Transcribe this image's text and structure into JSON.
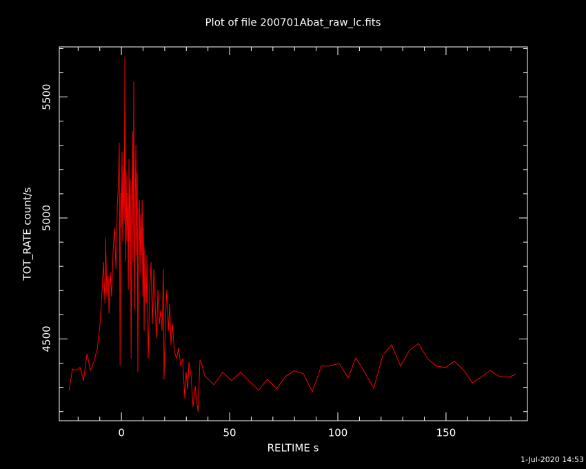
{
  "chart_data": {
    "type": "line",
    "title": "Plot of file 200701Abat_raw_lc.fits",
    "x_label": "RELTIME  s",
    "y_label": "TOT_RATE  count/s",
    "timestamp": "1-Jul-2020 14:53",
    "xlim": [
      -28.7,
      187.6
    ],
    "ylim": [
      4162,
      5707
    ],
    "xticks": [
      0,
      50,
      100,
      150
    ],
    "yticks": [
      4500,
      5000,
      5500
    ],
    "xminorticks": [
      -20,
      -10,
      10,
      20,
      30,
      40,
      60,
      70,
      80,
      90,
      110,
      120,
      130,
      140,
      160,
      170,
      180
    ],
    "yminorticks": [
      4200,
      4300,
      4400,
      4600,
      4700,
      4800,
      4900,
      5100,
      5200,
      5300,
      5400,
      5600,
      5700
    ],
    "x": [
      -24.2,
      -22.6,
      -21,
      -19.1,
      -17.5,
      -15.9,
      -14.3,
      -12.7,
      -11.1,
      -9.9,
      -8.9,
      -8.3,
      -7.6,
      -7.3,
      -6.7,
      -6.1,
      -5.7,
      -5.1,
      -4.5,
      -3.8,
      -3.2,
      -2.5,
      -1.9,
      -1.3,
      -1.0,
      -0.6,
      -0.3,
      0,
      0.3,
      0.6,
      1.0,
      1.3,
      1.6,
      1.9,
      2.2,
      2.5,
      2.9,
      3.2,
      3.5,
      3.8,
      4.1,
      4.5,
      4.8,
      5.1,
      5.4,
      5.7,
      6.1,
      6.4,
      6.7,
      7.0,
      7.3,
      7.6,
      8.0,
      8.3,
      8.6,
      8.9,
      9.2,
      9.6,
      9.9,
      10.2,
      10.5,
      10.8,
      11.5,
      11.8,
      12.4,
      13.1,
      13.7,
      14.3,
      15.0,
      15.6,
      16.2,
      16.9,
      17.5,
      18.2,
      18.8,
      19.4,
      19.7,
      20.4,
      21.0,
      21.7,
      22.3,
      22.9,
      23.6,
      24.5,
      25.5,
      26.4,
      27.4,
      28.3,
      29.3,
      29.9,
      30.6,
      31.2,
      32.2,
      33.1,
      34.1,
      35.4,
      36.3,
      37.3,
      38.5,
      42.7,
      46.8,
      50.9,
      55.1,
      59.2,
      63.4,
      67.5,
      71.7,
      75.8,
      79.9,
      84.1,
      88.2,
      92.4,
      96.5,
      100.6,
      104.8,
      108.3,
      112.4,
      116.6,
      120.7,
      124.8,
      129.0,
      133.1,
      137.3,
      141.4,
      145.5,
      149.7,
      153.8,
      158.0,
      162.1,
      166.2,
      170.4,
      174.5,
      178.7,
      182.2
    ],
    "series": [
      {
        "color": "#ff0000",
        "values": [
          4285,
          4376,
          4370,
          4382,
          4328,
          4439,
          4370,
          4405,
          4462,
          4561,
          4704,
          4818,
          4647,
          4917,
          4675,
          4761,
          4604,
          4775,
          4675,
          4875,
          4960,
          4789,
          5046,
          5160,
          5311,
          4390,
          5103,
          4960,
          5274,
          4903,
          5217,
          4989,
          5667,
          4818,
          5188,
          4903,
          5103,
          4704,
          5245,
          4903,
          5160,
          4419,
          5046,
          5359,
          4818,
          5564,
          4618,
          5074,
          5302,
          4846,
          5188,
          4362,
          5017,
          5074,
          4761,
          5017,
          4846,
          5074,
          4675,
          4960,
          4533,
          4875,
          4647,
          4846,
          4419,
          4704,
          4818,
          4561,
          4789,
          4647,
          4504,
          4704,
          4561,
          4618,
          4533,
          4789,
          4333,
          4590,
          4704,
          4533,
          4647,
          4476,
          4561,
          4447,
          4419,
          4462,
          4390,
          4419,
          4254,
          4362,
          4291,
          4405,
          4348,
          4219,
          4305,
          4197,
          4413,
          4390,
          4348,
          4311,
          4362,
          4328,
          4362,
          4325,
          4288,
          4334,
          4294,
          4345,
          4368,
          4356,
          4282,
          4388,
          4388,
          4399,
          4339,
          4422,
          4362,
          4296,
          4430,
          4476,
          4388,
          4453,
          4481,
          4419,
          4388,
          4382,
          4408,
          4373,
          4319,
          4342,
          4370,
          4345,
          4342,
          4353
        ]
      }
    ]
  }
}
